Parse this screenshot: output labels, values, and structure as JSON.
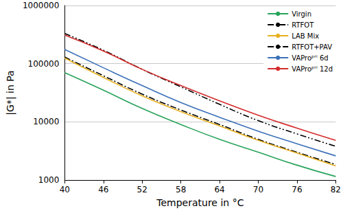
{
  "chart_data": {
    "type": "line",
    "x_label": "Temperature in °C",
    "y_label": "|G*| in Pa",
    "x": [
      40,
      46,
      52,
      58,
      64,
      70,
      76,
      82
    ],
    "series": [
      {
        "name": "Virgin",
        "color": "#27a35a",
        "line_style": "solid",
        "values": [
          70000,
          35000,
          17000,
          9000,
          5000,
          3000,
          1800,
          1150
        ]
      },
      {
        "name": "RTFOT",
        "color": "#000000",
        "line_style": "dashdot",
        "values": [
          130000,
          62000,
          30000,
          16000,
          9000,
          5000,
          3000,
          1850
        ]
      },
      {
        "name": "LAB Mix",
        "color": "#e8b020",
        "line_style": "solid",
        "values": [
          125000,
          58000,
          28000,
          15000,
          8500,
          4800,
          2900,
          1750
        ]
      },
      {
        "name": "RTFOT+PAV",
        "color": "#000000",
        "line_style": "dashdotdot",
        "values": [
          330000,
          170000,
          80000,
          40000,
          20000,
          10500,
          6200,
          3800
        ]
      },
      {
        "name": "VAProᵖʳⁱ 6d",
        "color": "#3b70b8",
        "line_style": "solid",
        "values": [
          175000,
          85000,
          42000,
          21500,
          12000,
          6900,
          4200,
          2600
        ]
      },
      {
        "name": "VAProᵖʳⁱ 12d",
        "color": "#d42a2a",
        "line_style": "solid",
        "values": [
          310000,
          165000,
          80000,
          42000,
          23000,
          13000,
          7800,
          4800
        ]
      }
    ],
    "xlim": [
      40,
      82
    ],
    "xticks": [
      40,
      46,
      52,
      58,
      64,
      70,
      76,
      82
    ],
    "ylim": [
      1000,
      1000000
    ],
    "yticks": [
      1000,
      10000,
      100000,
      1000000
    ],
    "log": "y",
    "grid": true,
    "legend": "upper right"
  }
}
